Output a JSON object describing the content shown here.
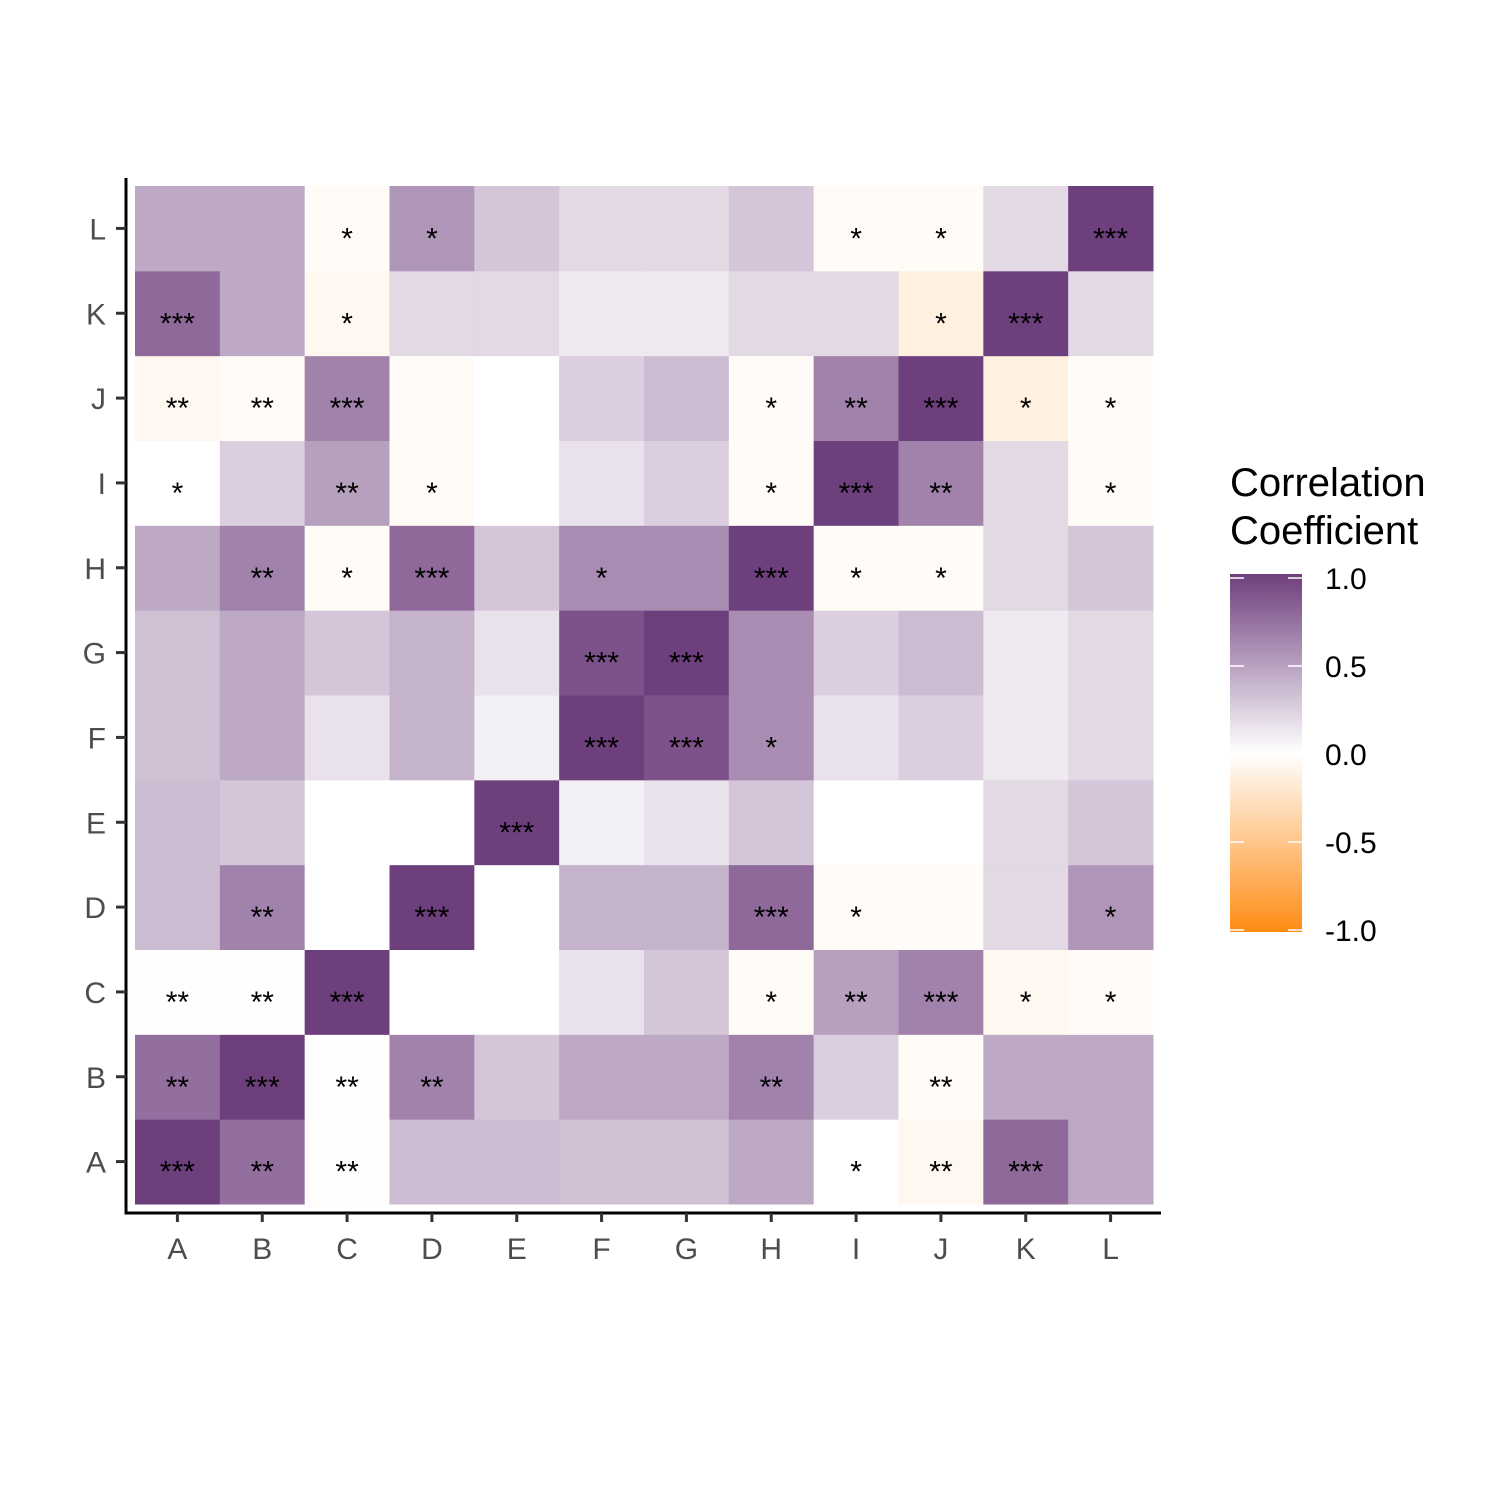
{
  "chart_data": {
    "type": "heatmap",
    "title": "",
    "xlabel": "",
    "ylabel": "",
    "x_categories": [
      "A",
      "B",
      "C",
      "D",
      "E",
      "F",
      "G",
      "H",
      "I",
      "J",
      "K",
      "L"
    ],
    "y_categories": [
      "A",
      "B",
      "C",
      "D",
      "E",
      "F",
      "G",
      "H",
      "I",
      "J",
      "K",
      "L"
    ],
    "legend": {
      "title_lines": [
        "Correlation",
        "Coefficient"
      ],
      "ticks": [
        {
          "value": 1.0,
          "label": "1.0"
        },
        {
          "value": 0.5,
          "label": "0.5"
        },
        {
          "value": 0.0,
          "label": "0.0"
        },
        {
          "value": -0.5,
          "label": "-0.5"
        },
        {
          "value": -1.0,
          "label": "-1.0"
        }
      ],
      "range": [
        -1,
        1
      ],
      "placement": "right"
    },
    "colors": {
      "high": "#6e3f7d",
      "mid": "#ffffff",
      "low": "#ff8c14"
    },
    "grid": false,
    "values": [
      [
        1.0,
        0.75,
        -0.01,
        0.35,
        0.35,
        0.33,
        0.33,
        0.45,
        0.0,
        -0.06,
        0.78,
        0.45
      ],
      [
        0.75,
        1.0,
        -0.01,
        0.65,
        0.3,
        0.45,
        0.45,
        0.65,
        0.25,
        -0.03,
        0.45,
        0.45
      ],
      [
        -0.01,
        -0.01,
        1.0,
        0.0,
        0.0,
        0.15,
        0.3,
        -0.03,
        0.5,
        0.65,
        -0.06,
        -0.03
      ],
      [
        0.35,
        0.65,
        0.0,
        1.0,
        0.0,
        0.4,
        0.4,
        0.78,
        -0.03,
        -0.03,
        0.2,
        0.55
      ],
      [
        0.35,
        0.3,
        0.0,
        0.0,
        1.0,
        0.08,
        0.15,
        0.3,
        0.0,
        0.0,
        0.2,
        0.3
      ],
      [
        0.33,
        0.45,
        0.15,
        0.4,
        0.08,
        1.0,
        0.9,
        0.6,
        0.15,
        0.25,
        0.12,
        0.2
      ],
      [
        0.33,
        0.45,
        0.3,
        0.4,
        0.15,
        0.9,
        1.0,
        0.6,
        0.25,
        0.35,
        0.12,
        0.2
      ],
      [
        0.45,
        0.65,
        -0.03,
        0.78,
        0.3,
        0.6,
        0.6,
        1.0,
        -0.03,
        -0.03,
        0.2,
        0.3
      ],
      [
        0.0,
        0.25,
        0.5,
        -0.03,
        0.0,
        0.15,
        0.25,
        -0.03,
        1.0,
        0.65,
        0.2,
        -0.03
      ],
      [
        -0.06,
        -0.03,
        0.65,
        -0.03,
        0.0,
        0.25,
        0.35,
        -0.03,
        0.65,
        1.0,
        -0.13,
        -0.03
      ],
      [
        0.78,
        0.45,
        -0.06,
        0.2,
        0.2,
        0.12,
        0.12,
        0.2,
        0.2,
        -0.13,
        1.0,
        0.2
      ],
      [
        0.45,
        0.45,
        -0.03,
        0.55,
        0.3,
        0.2,
        0.2,
        0.3,
        -0.03,
        -0.03,
        0.2,
        1.0
      ]
    ],
    "significance": [
      [
        "***",
        "**",
        "**",
        "",
        "",
        "",
        "",
        "",
        "*",
        "**",
        "***",
        ""
      ],
      [
        "**",
        "***",
        "**",
        "**",
        "",
        "",
        "",
        "**",
        "",
        "**",
        "",
        ""
      ],
      [
        "**",
        "**",
        "***",
        "",
        "",
        "",
        "",
        "*",
        "**",
        "***",
        "*",
        "*"
      ],
      [
        "",
        "**",
        "",
        "***",
        "",
        "",
        "",
        "***",
        "*",
        "",
        "",
        "*"
      ],
      [
        "",
        "",
        "",
        "",
        "***",
        "",
        "",
        "",
        "",
        "",
        "",
        ""
      ],
      [
        "",
        "",
        "",
        "",
        "",
        "***",
        "***",
        "*",
        "",
        "",
        "",
        ""
      ],
      [
        "",
        "",
        "",
        "",
        "",
        "***",
        "***",
        "",
        "",
        "",
        "",
        ""
      ],
      [
        "",
        "**",
        "*",
        "***",
        "",
        "*",
        "",
        "***",
        "*",
        "*",
        "",
        ""
      ],
      [
        "*",
        "",
        "**",
        "*",
        "",
        "",
        "",
        "*",
        "***",
        "**",
        "",
        "*"
      ],
      [
        "**",
        "**",
        "***",
        "",
        "",
        "",
        "",
        "*",
        "**",
        "***",
        "*",
        "*"
      ],
      [
        "***",
        "",
        "*",
        "",
        "",
        "",
        "",
        "",
        "",
        "*",
        "***",
        ""
      ],
      [
        "",
        "",
        "*",
        "*",
        "",
        "",
        "",
        "",
        "*",
        "*",
        "",
        "***"
      ]
    ]
  }
}
